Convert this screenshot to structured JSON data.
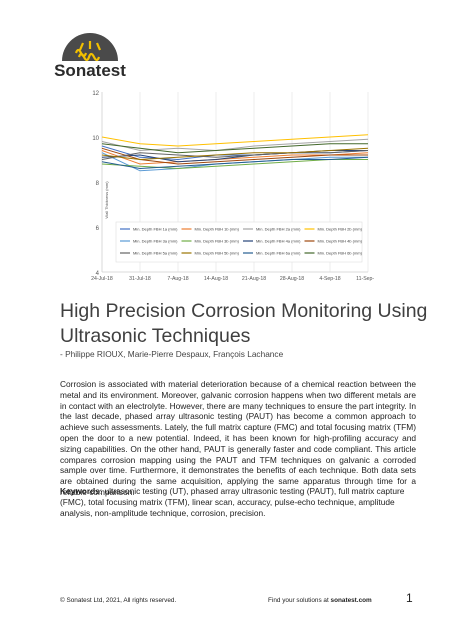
{
  "logo": {
    "brand": "Sonatest",
    "colors": {
      "dome": "#4a4a4a",
      "accent": "#f2c000"
    }
  },
  "chart_data": {
    "type": "line",
    "title": "",
    "xlabel": "",
    "ylabel": "Wall Thickness (mm)",
    "ylim": [
      4,
      12
    ],
    "yticks": [
      "12",
      "10",
      "8",
      "6",
      "4"
    ],
    "categories": [
      "24-Jul-18",
      "31-Jul-18",
      "7-Aug-18",
      "14-Aug-18",
      "21-Aug-18",
      "28-Aug-18",
      "4-Sep-18",
      "11-Sep-18"
    ],
    "legend_position": "inside-bottom",
    "series": [
      {
        "name": "Min. Depth FBH 1a (mm)",
        "color": "#4472c4",
        "values": [
          9.6,
          9.1,
          9.0,
          9.2,
          9.2,
          9.3,
          9.3,
          9.4
        ]
      },
      {
        "name": "Min. Depth FBH 1b (mm)",
        "color": "#ed7d31",
        "values": [
          9.4,
          8.8,
          8.9,
          9.0,
          9.1,
          9.2,
          9.2,
          9.3
        ]
      },
      {
        "name": "Min. Depth FBH 2a (mm)",
        "color": "#a5a5a5",
        "values": [
          9.8,
          9.4,
          9.5,
          9.4,
          9.6,
          9.7,
          9.8,
          9.9
        ]
      },
      {
        "name": "Min. Depth FBH 2b (mm)",
        "color": "#ffc000",
        "values": [
          10.0,
          9.7,
          9.6,
          9.7,
          9.8,
          9.9,
          10.0,
          10.1
        ]
      },
      {
        "name": "Min. Depth FBH 3a (mm)",
        "color": "#5b9bd5",
        "values": [
          9.3,
          8.5,
          8.6,
          8.8,
          8.9,
          9.0,
          9.1,
          9.1
        ]
      },
      {
        "name": "Min. Depth FBH 3b (mm)",
        "color": "#70ad47",
        "values": [
          8.8,
          8.7,
          8.6,
          8.7,
          8.8,
          8.9,
          9.0,
          9.0
        ]
      },
      {
        "name": "Min. Depth FBH 4a (mm)",
        "color": "#264478",
        "values": [
          9.1,
          9.2,
          8.9,
          9.0,
          9.2,
          9.3,
          9.4,
          9.4
        ]
      },
      {
        "name": "Min. Depth FBH 4b (mm)",
        "color": "#9e480e",
        "values": [
          9.5,
          9.0,
          8.8,
          8.9,
          9.0,
          9.1,
          9.2,
          9.2
        ]
      },
      {
        "name": "Min. Depth FBH 5a (mm)",
        "color": "#636363",
        "values": [
          9.0,
          9.3,
          9.2,
          9.1,
          9.2,
          9.3,
          9.3,
          9.4
        ]
      },
      {
        "name": "Min. Depth FBH 5b (mm)",
        "color": "#997300",
        "values": [
          9.2,
          9.0,
          9.1,
          9.2,
          9.3,
          9.3,
          9.4,
          9.5
        ]
      },
      {
        "name": "Min. Depth FBH 6a (mm)",
        "color": "#255e91",
        "values": [
          8.9,
          8.6,
          8.7,
          8.8,
          8.9,
          9.0,
          9.0,
          9.1
        ]
      },
      {
        "name": "Min. Depth FBH 6b (mm)",
        "color": "#43682b",
        "values": [
          9.7,
          9.5,
          9.3,
          9.4,
          9.5,
          9.6,
          9.7,
          9.7
        ]
      }
    ]
  },
  "paper": {
    "title_line1": "High Precision Corrosion Monitoring Using",
    "title_line2": "Ultrasonic Techniques",
    "authors": " - Philippe RIOUX, Marie-Pierre Despaux, François Lachance",
    "abstract": "Corrosion is associated with material deterioration because of a chemical reaction between the metal and its environment. Moreover, galvanic corrosion happens when two different metals are in contact with an electrolyte. However, there are many techniques to ensure the part integrity. In the last decade, phased array ultrasonic testing (PAUT) has become a common approach to achieve such assessments. Lately, the full matrix capture (FMC) and total focusing matrix (TFM) open the door to a new potential. Indeed, it has been known for high-profiling accuracy and sizing capabilities. On the other hand, PAUT is generally faster and code compliant. This article compares corrosion mapping using the PAUT and TFM techniques on galvanic a corroded sample over time. Furthermore, it demonstrates the benefits of each technique. Both data sets are obtained during the same acquisition, applying the same apparatus through time for a reliable comparison.",
    "keywords_label": "Keywords",
    "keywords_text": ": ultrasonic testing (UT), phased array ultrasonic testing (PAUT), full matrix capture (FMC), total focusing matrix (TFM), linear scan, accuracy, pulse-echo technique, amplitude analysis, non-amplitude technique, corrosion, precision."
  },
  "footer": {
    "copyright": "© Sonatest Ltd, 2021, All rights reserved.",
    "solutions_prefix": "Find your solutions at ",
    "solutions_site": "sonatest.com",
    "page_number": "1"
  }
}
